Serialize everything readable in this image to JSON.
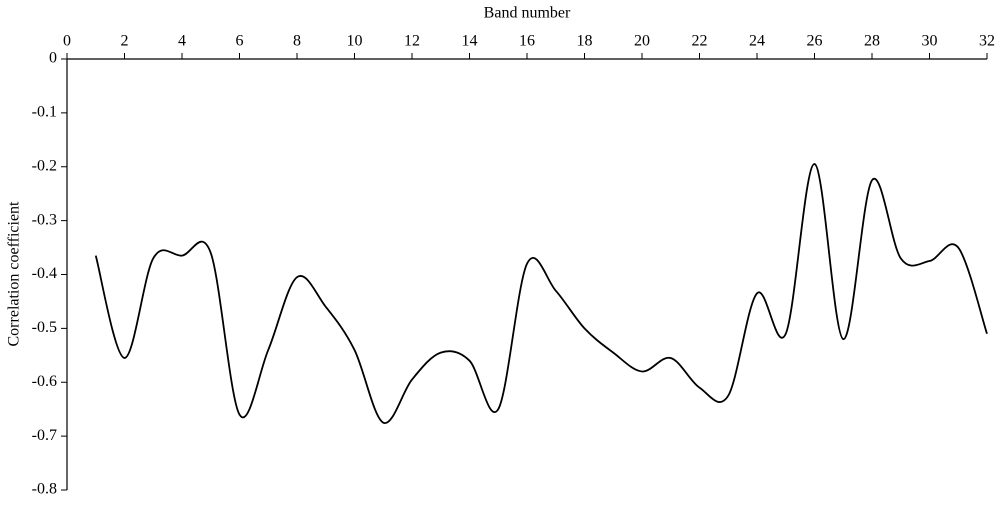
{
  "chart_data": {
    "type": "line",
    "x_label": "Band number",
    "y_label": "Correlation coefficient",
    "x": [
      1,
      2,
      3,
      4,
      5,
      6,
      7,
      8,
      9,
      10,
      11,
      12,
      13,
      14,
      15,
      16,
      17,
      18,
      19,
      20,
      21,
      22,
      23,
      24,
      25,
      26,
      27,
      28,
      29,
      30,
      31,
      32
    ],
    "series": [
      {
        "color": "#000000",
        "values": [
          -0.365,
          -0.555,
          -0.37,
          -0.365,
          -0.36,
          -0.66,
          -0.54,
          -0.405,
          -0.46,
          -0.54,
          -0.675,
          -0.595,
          -0.545,
          -0.56,
          -0.65,
          -0.38,
          -0.43,
          -0.5,
          -0.545,
          -0.58,
          -0.555,
          -0.61,
          -0.625,
          -0.435,
          -0.51,
          -0.195,
          -0.52,
          -0.225,
          -0.37,
          -0.375,
          -0.35,
          -0.51
        ]
      }
    ],
    "xlim": [
      0,
      32
    ],
    "xticks": [
      0,
      2,
      4,
      6,
      8,
      10,
      12,
      14,
      16,
      18,
      20,
      22,
      24,
      26,
      28,
      30,
      32
    ],
    "ylim": [
      -0.8,
      0
    ],
    "yticks": [
      0,
      -0.1,
      -0.2,
      -0.3,
      -0.4,
      -0.5,
      -0.6,
      -0.7,
      -0.8
    ],
    "smooth": true
  }
}
